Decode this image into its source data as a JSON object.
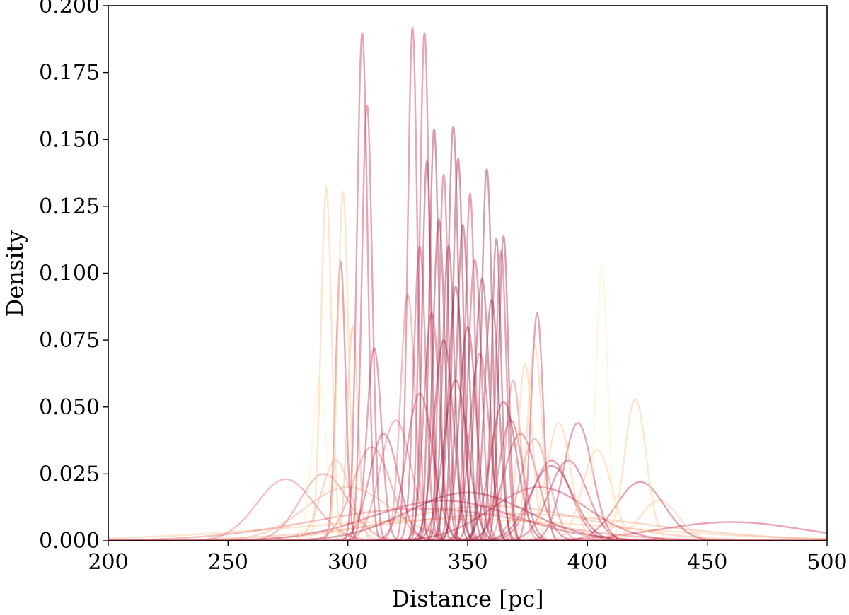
{
  "chart_data": {
    "type": "line",
    "xlabel": "Distance [pc]",
    "ylabel": "Density",
    "xlim": [
      200,
      500
    ],
    "ylim": [
      0.0,
      0.2
    ],
    "x_ticks": [
      "200",
      "250",
      "300",
      "350",
      "400",
      "450",
      "500"
    ],
    "y_ticks": [
      "0.000",
      "0.025",
      "0.050",
      "0.075",
      "0.100",
      "0.125",
      "0.150",
      "0.175",
      "0.200"
    ],
    "grid": false,
    "legend": "none",
    "colormap": [
      "#fff3c4",
      "#fdd0a2",
      "#f4a582",
      "#e06b6b",
      "#c8284a",
      "#9e1a3c"
    ],
    "series_shape": "gaussian",
    "series": [
      {
        "peak_x": 306,
        "peak_y": 0.19,
        "sigma": 2.2,
        "color": "#c8284a"
      },
      {
        "peak_x": 308,
        "peak_y": 0.163,
        "sigma": 2.2,
        "color": "#c8284a"
      },
      {
        "peak_x": 327,
        "peak_y": 0.192,
        "sigma": 2.0,
        "color": "#c8284a"
      },
      {
        "peak_x": 332,
        "peak_y": 0.19,
        "sigma": 2.0,
        "color": "#c8284a"
      },
      {
        "peak_x": 336,
        "peak_y": 0.154,
        "sigma": 2.0,
        "color": "#9e1a3c"
      },
      {
        "peak_x": 344,
        "peak_y": 0.155,
        "sigma": 2.2,
        "color": "#9e1a3c"
      },
      {
        "peak_x": 346,
        "peak_y": 0.143,
        "sigma": 2.2,
        "color": "#9e1a3c"
      },
      {
        "peak_x": 351,
        "peak_y": 0.13,
        "sigma": 2.0,
        "color": "#c8284a"
      },
      {
        "peak_x": 358,
        "peak_y": 0.139,
        "sigma": 2.2,
        "color": "#9e1a3c"
      },
      {
        "peak_x": 333,
        "peak_y": 0.142,
        "sigma": 2.0,
        "color": "#9e1a3c"
      },
      {
        "peak_x": 340,
        "peak_y": 0.137,
        "sigma": 2.0,
        "color": "#c8284a"
      },
      {
        "peak_x": 362,
        "peak_y": 0.113,
        "sigma": 2.0,
        "color": "#9e1a3c"
      },
      {
        "peak_x": 365,
        "peak_y": 0.114,
        "sigma": 2.0,
        "color": "#9e1a3c"
      },
      {
        "peak_x": 364,
        "peak_y": 0.108,
        "sigma": 2.2,
        "color": "#c8284a"
      },
      {
        "peak_x": 297,
        "peak_y": 0.104,
        "sigma": 2.0,
        "color": "#c8284a"
      },
      {
        "peak_x": 291,
        "peak_y": 0.132,
        "sigma": 2.2,
        "color": "#fdd0a2"
      },
      {
        "peak_x": 298,
        "peak_y": 0.13,
        "sigma": 2.2,
        "color": "#fdd0a2"
      },
      {
        "peak_x": 302,
        "peak_y": 0.08,
        "sigma": 2.2,
        "color": "#f4a582"
      },
      {
        "peak_x": 406,
        "peak_y": 0.103,
        "sigma": 2.4,
        "color": "#fff3c4"
      },
      {
        "peak_x": 379,
        "peak_y": 0.085,
        "sigma": 2.5,
        "color": "#c8284a"
      },
      {
        "peak_x": 378,
        "peak_y": 0.073,
        "sigma": 3.0,
        "color": "#fdd0a2"
      },
      {
        "peak_x": 374,
        "peak_y": 0.066,
        "sigma": 3.0,
        "color": "#fdd0a2"
      },
      {
        "peak_x": 369,
        "peak_y": 0.06,
        "sigma": 3.2,
        "color": "#e06b6b"
      },
      {
        "peak_x": 420,
        "peak_y": 0.053,
        "sigma": 4.5,
        "color": "#fdd0a2"
      },
      {
        "peak_x": 396,
        "peak_y": 0.044,
        "sigma": 6.0,
        "color": "#c8284a"
      },
      {
        "peak_x": 388,
        "peak_y": 0.044,
        "sigma": 5.0,
        "color": "#fdd0a2"
      },
      {
        "peak_x": 404,
        "peak_y": 0.034,
        "sigma": 6.0,
        "color": "#fdd0a2"
      },
      {
        "peak_x": 311,
        "peak_y": 0.072,
        "sigma": 3.0,
        "color": "#c8284a"
      },
      {
        "peak_x": 325,
        "peak_y": 0.092,
        "sigma": 3.0,
        "color": "#e06b6b"
      },
      {
        "peak_x": 330,
        "peak_y": 0.11,
        "sigma": 2.5,
        "color": "#c8284a"
      },
      {
        "peak_x": 338,
        "peak_y": 0.12,
        "sigma": 2.5,
        "color": "#9e1a3c"
      },
      {
        "peak_x": 342,
        "peak_y": 0.11,
        "sigma": 2.5,
        "color": "#9e1a3c"
      },
      {
        "peak_x": 348,
        "peak_y": 0.118,
        "sigma": 2.5,
        "color": "#9e1a3c"
      },
      {
        "peak_x": 353,
        "peak_y": 0.105,
        "sigma": 2.8,
        "color": "#c8284a"
      },
      {
        "peak_x": 356,
        "peak_y": 0.098,
        "sigma": 3.0,
        "color": "#9e1a3c"
      },
      {
        "peak_x": 360,
        "peak_y": 0.09,
        "sigma": 3.0,
        "color": "#9e1a3c"
      },
      {
        "peak_x": 345,
        "peak_y": 0.095,
        "sigma": 3.0,
        "color": "#9e1a3c"
      },
      {
        "peak_x": 335,
        "peak_y": 0.085,
        "sigma": 3.2,
        "color": "#c8284a"
      },
      {
        "peak_x": 350,
        "peak_y": 0.08,
        "sigma": 3.5,
        "color": "#9e1a3c"
      },
      {
        "peak_x": 340,
        "peak_y": 0.075,
        "sigma": 4.0,
        "color": "#9e1a3c"
      },
      {
        "peak_x": 355,
        "peak_y": 0.07,
        "sigma": 4.0,
        "color": "#c8284a"
      },
      {
        "peak_x": 345,
        "peak_y": 0.06,
        "sigma": 5.0,
        "color": "#9e1a3c"
      },
      {
        "peak_x": 330,
        "peak_y": 0.055,
        "sigma": 5.5,
        "color": "#c8284a"
      },
      {
        "peak_x": 365,
        "peak_y": 0.052,
        "sigma": 5.5,
        "color": "#9e1a3c"
      },
      {
        "peak_x": 320,
        "peak_y": 0.045,
        "sigma": 6.5,
        "color": "#e06b6b"
      },
      {
        "peak_x": 372,
        "peak_y": 0.04,
        "sigma": 7.0,
        "color": "#c8284a"
      },
      {
        "peak_x": 310,
        "peak_y": 0.035,
        "sigma": 8.0,
        "color": "#e06b6b"
      },
      {
        "peak_x": 385,
        "peak_y": 0.03,
        "sigma": 8.0,
        "color": "#c8284a"
      },
      {
        "peak_x": 290,
        "peak_y": 0.025,
        "sigma": 10.0,
        "color": "#e06b6b"
      },
      {
        "peak_x": 274,
        "peak_y": 0.023,
        "sigma": 12.0,
        "color": "#e06b6b"
      },
      {
        "peak_x": 422,
        "peak_y": 0.022,
        "sigma": 10.0,
        "color": "#c8284a"
      },
      {
        "peak_x": 300,
        "peak_y": 0.02,
        "sigma": 18.0,
        "color": "#f4a582"
      },
      {
        "peak_x": 380,
        "peak_y": 0.02,
        "sigma": 20.0,
        "color": "#c8284a"
      },
      {
        "peak_x": 350,
        "peak_y": 0.018,
        "sigma": 25.0,
        "color": "#9e1a3c"
      },
      {
        "peak_x": 340,
        "peak_y": 0.015,
        "sigma": 30.0,
        "color": "#c8284a"
      },
      {
        "peak_x": 360,
        "peak_y": 0.013,
        "sigma": 40.0,
        "color": "#f4a582"
      },
      {
        "peak_x": 330,
        "peak_y": 0.012,
        "sigma": 45.0,
        "color": "#e06b6b"
      },
      {
        "peak_x": 370,
        "peak_y": 0.01,
        "sigma": 55.0,
        "color": "#f4a582"
      },
      {
        "peak_x": 460,
        "peak_y": 0.007,
        "sigma": 30.0,
        "color": "#c8284a"
      },
      {
        "peak_x": 345,
        "peak_y": 0.008,
        "sigma": 70.0,
        "color": "#fdd0a2"
      },
      {
        "peak_x": 385,
        "peak_y": 0.028,
        "sigma": 9.0,
        "color": "#9e1a3c"
      },
      {
        "peak_x": 392,
        "peak_y": 0.03,
        "sigma": 8.0,
        "color": "#c8284a"
      },
      {
        "peak_x": 315,
        "peak_y": 0.04,
        "sigma": 6.0,
        "color": "#c8284a"
      },
      {
        "peak_x": 295,
        "peak_y": 0.03,
        "sigma": 6.0,
        "color": "#f4a582"
      },
      {
        "peak_x": 288,
        "peak_y": 0.06,
        "sigma": 3.0,
        "color": "#fff3c4"
      },
      {
        "peak_x": 378,
        "peak_y": 0.038,
        "sigma": 6.0,
        "color": "#e06b6b"
      },
      {
        "peak_x": 368,
        "peak_y": 0.045,
        "sigma": 5.0,
        "color": "#c8284a"
      },
      {
        "peak_x": 430,
        "peak_y": 0.015,
        "sigma": 8.0,
        "color": "#fdd0a2"
      }
    ]
  }
}
